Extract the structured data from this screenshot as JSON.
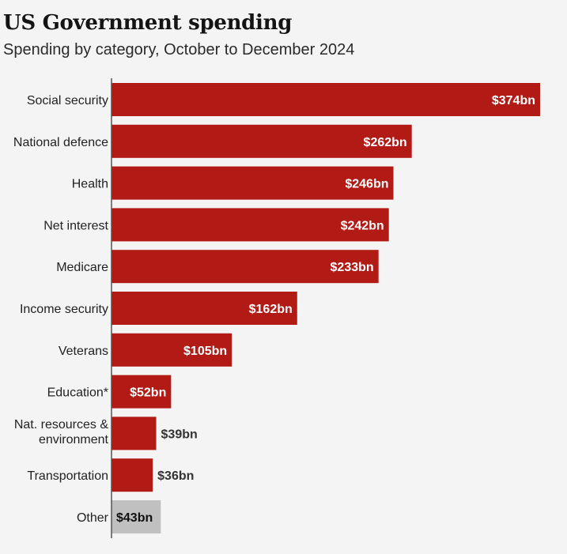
{
  "header": {
    "title": "US Government spending",
    "subtitle": "Spending by category, October to December 2024"
  },
  "colors": {
    "bar": "#b11a15",
    "bar_other": "#c0c0c0",
    "axis": "#555555",
    "background": "#f4f4f4"
  },
  "chart_data": {
    "type": "bar",
    "orientation": "horizontal",
    "title": "US Government spending",
    "subtitle": "Spending by category, October to December 2024",
    "unit": "$bn",
    "categories": [
      [
        "Social security"
      ],
      [
        "National defence"
      ],
      [
        "Health"
      ],
      [
        "Net interest"
      ],
      [
        "Medicare"
      ],
      [
        "Income security"
      ],
      [
        "Veterans"
      ],
      [
        "Education*"
      ],
      [
        "Nat. resources &",
        "environment"
      ],
      [
        "Transportation"
      ],
      [
        "Other"
      ]
    ],
    "values": [
      374,
      262,
      246,
      242,
      233,
      162,
      105,
      52,
      39,
      36,
      43
    ],
    "value_labels": [
      "$374bn",
      "$262bn",
      "$246bn",
      "$242bn",
      "$233bn",
      "$162bn",
      "$105bn",
      "$52bn",
      "$39bn",
      "$36bn",
      "$43bn"
    ],
    "highlight_gray": [
      "Other"
    ],
    "xlim": [
      0,
      374
    ],
    "grid": false,
    "legend": "none"
  }
}
